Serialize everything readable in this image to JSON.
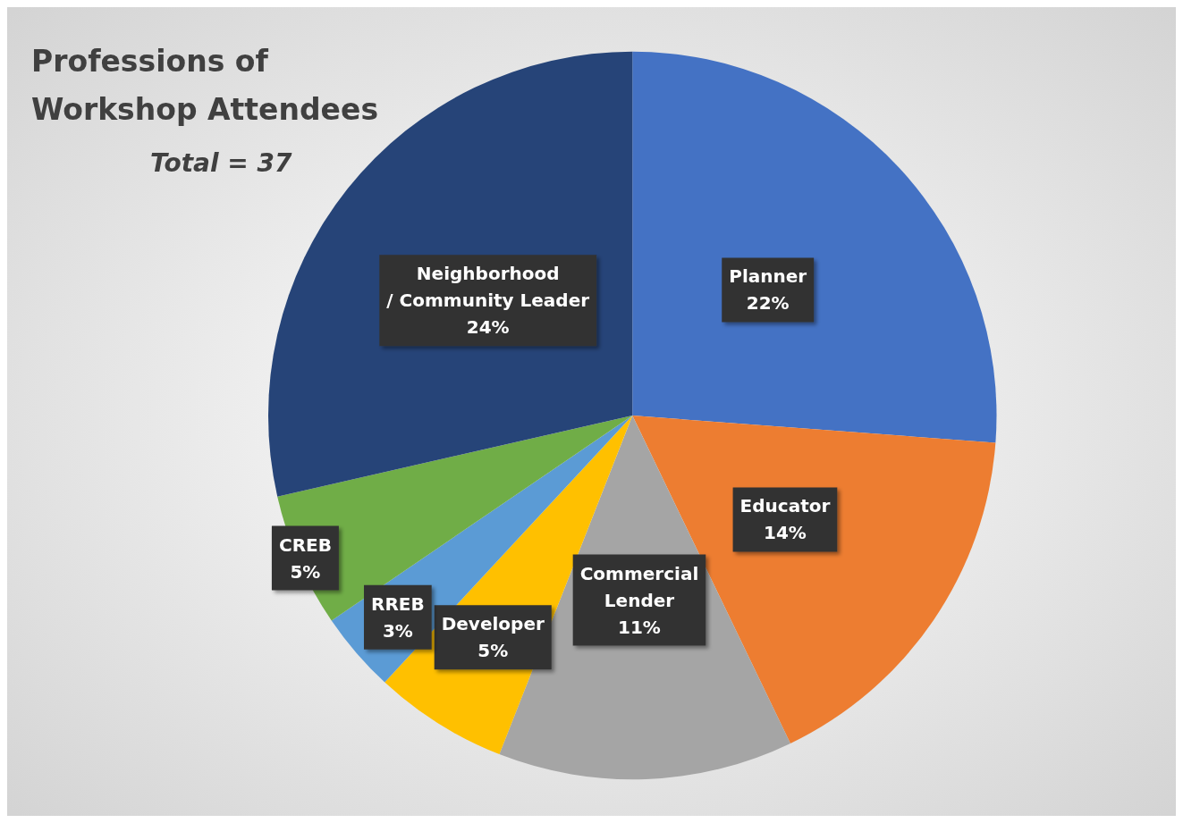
{
  "chart_data": {
    "type": "pie",
    "title": "Professions of Workshop Attendees",
    "annotations": [
      "Total = 37"
    ],
    "categories": [
      "Planner",
      "Educator",
      "Commercial Lender",
      "Developer",
      "RREB",
      "CREB",
      "Neighborhood / Community Leader"
    ],
    "values": [
      22,
      14,
      11,
      5,
      3,
      5,
      24
    ],
    "value_labels": [
      "22%",
      "14%",
      "11%",
      "5%",
      "3%",
      "5%",
      "24%"
    ],
    "colors": [
      "#4472c4",
      "#ed7d31",
      "#a5a5a5",
      "#ffc000",
      "#5b9bd5",
      "#70ad47",
      "#264478"
    ],
    "legend": false
  }
}
